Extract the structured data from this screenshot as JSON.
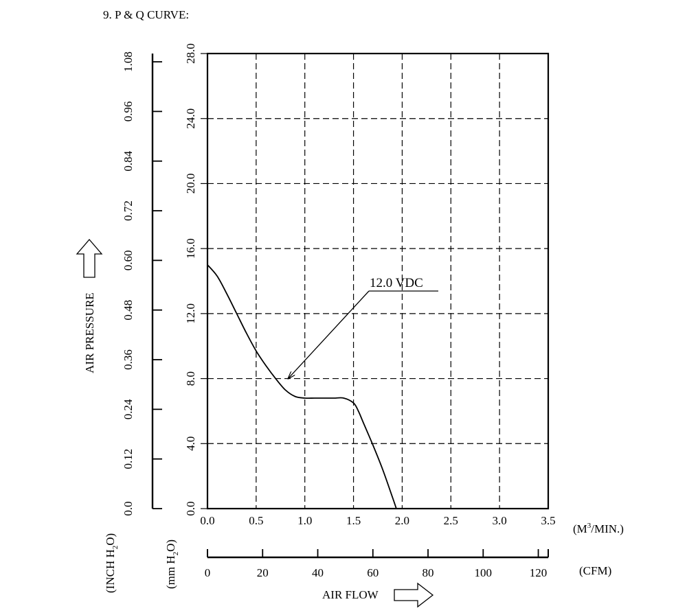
{
  "page": {
    "heading": "9. P & Q CURVE:"
  },
  "chart_data": {
    "type": "line",
    "x_label": "AIR FLOW",
    "y_label": "AIR PRESSURE",
    "x_unit_primary": "(M³/MIN.)",
    "x_unit_primary_base": "(M",
    "x_unit_primary_sup": "3",
    "x_unit_primary_tail": "/MIN.)",
    "x_unit_secondary": "(CFM)",
    "y_unit_primary": "(mm H₂O)",
    "y_unit_primary_base": "(mm H",
    "y_unit_primary_sub": "2",
    "y_unit_primary_tail": "O)",
    "y_unit_secondary": "(INCH H₂O)",
    "y_unit_secondary_base": "(INCH H",
    "y_unit_secondary_sub": "2",
    "y_unit_secondary_tail": "O)",
    "xlim": [
      0,
      3.5
    ],
    "ylim": [
      0,
      28
    ],
    "x_ticks": [
      "0.0",
      "0.5",
      "1.0",
      "1.5",
      "2.0",
      "2.5",
      "3.0",
      "3.5"
    ],
    "y_ticks": [
      "0.0",
      "4.0",
      "8.0",
      "12.0",
      "16.0",
      "20.0",
      "24.0",
      "28.0"
    ],
    "x_secondary_ticks": [
      "0",
      "20",
      "40",
      "60",
      "80",
      "100",
      "120"
    ],
    "x_secondary_lim": [
      0,
      123.6
    ],
    "y_secondary_ticks": [
      "0.0",
      "0.12",
      "0.24",
      "0.36",
      "0.48",
      "0.60",
      "0.72",
      "0.84",
      "0.96",
      "1.08"
    ],
    "y_secondary_lim": [
      0,
      1.1
    ],
    "grid": true,
    "grid_style": "dashed",
    "series": [
      {
        "name": "12.0 VDC",
        "x": [
          0.0,
          0.1,
          0.2,
          0.3,
          0.4,
          0.5,
          0.6,
          0.7,
          0.8,
          0.9,
          1.0,
          1.1,
          1.2,
          1.3,
          1.4,
          1.5,
          1.55,
          1.6,
          1.7,
          1.8,
          1.9,
          1.94
        ],
        "y": [
          15.0,
          14.3,
          13.2,
          12.0,
          10.8,
          9.7,
          8.8,
          8.0,
          7.3,
          6.9,
          6.8,
          6.8,
          6.8,
          6.8,
          6.8,
          6.5,
          6.0,
          5.3,
          3.9,
          2.4,
          0.7,
          0.0
        ]
      }
    ],
    "annotation": {
      "text": "12.0 VDC",
      "points_to": {
        "x": 0.8,
        "y": 8.0
      }
    }
  }
}
